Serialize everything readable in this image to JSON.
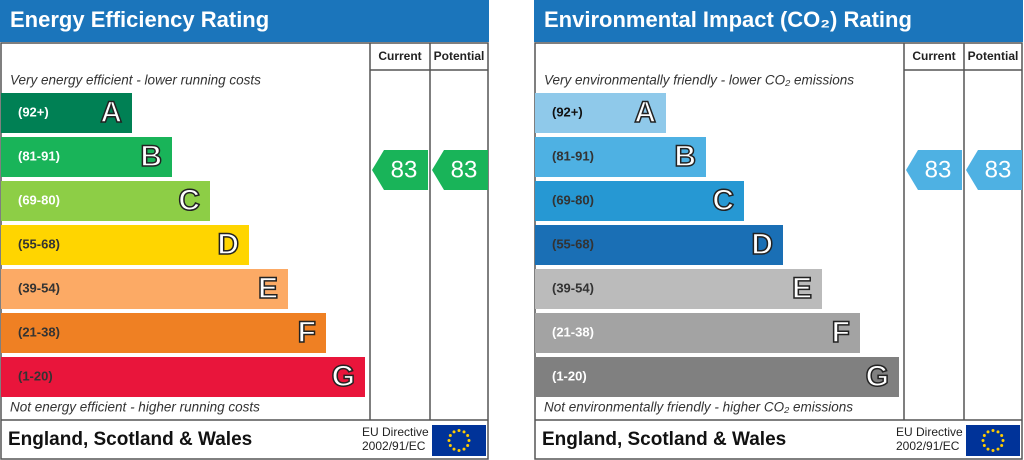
{
  "panels": [
    {
      "title": "Energy Efficiency Rating",
      "headers": [
        "Current",
        "Potential"
      ],
      "top_note": "Very energy efficient - lower running costs",
      "bands": [
        {
          "range": "(92+)",
          "letter": "A",
          "color": "#008054",
          "text_color": "#ffffff"
        },
        {
          "range": "(81-91)",
          "letter": "B",
          "color": "#19b459",
          "text_color": "#ffffff"
        },
        {
          "range": "(69-80)",
          "letter": "C",
          "color": "#8dce46",
          "text_color": "#ffffff"
        },
        {
          "range": "(55-68)",
          "letter": "D",
          "color": "#ffd500",
          "text_color": "#333333"
        },
        {
          "range": "(39-54)",
          "letter": "E",
          "color": "#fcaa65",
          "text_color": "#333333"
        },
        {
          "range": "(21-38)",
          "letter": "F",
          "color": "#ef8023",
          "text_color": "#333333"
        },
        {
          "range": "(1-20)",
          "letter": "G",
          "color": "#e9153b",
          "text_color": "#333333"
        }
      ],
      "current": 83,
      "potential": 83,
      "rating_color": "#19b459",
      "bottom_note": "Not energy efficient - higher running costs",
      "region": "England, Scotland & Wales",
      "directive": [
        "EU Directive",
        "2002/91/EC"
      ]
    },
    {
      "title": "Environmental Impact (CO₂) Rating",
      "headers": [
        "Current",
        "Potential"
      ],
      "top_note": "Very environmentally friendly - lower CO₂ emissions",
      "bands": [
        {
          "range": "(92+)",
          "letter": "A",
          "color": "#8fc9ea",
          "text_color": "#111111"
        },
        {
          "range": "(81-91)",
          "letter": "B",
          "color": "#4eb1e3",
          "text_color": "#333333"
        },
        {
          "range": "(69-80)",
          "letter": "C",
          "color": "#2698d3",
          "text_color": "#333333"
        },
        {
          "range": "(55-68)",
          "letter": "D",
          "color": "#1a6fb5",
          "text_color": "#333333"
        },
        {
          "range": "(39-54)",
          "letter": "E",
          "color": "#bbbbbb",
          "text_color": "#333333"
        },
        {
          "range": "(21-38)",
          "letter": "F",
          "color": "#a3a3a3",
          "text_color": "#ffffff"
        },
        {
          "range": "(1-20)",
          "letter": "G",
          "color": "#808080",
          "text_color": "#ffffff"
        }
      ],
      "current": 83,
      "potential": 83,
      "rating_color": "#4eb1e3",
      "bottom_note": "Not environmentally friendly - higher CO₂ emissions",
      "region": "England, Scotland & Wales",
      "directive": [
        "EU Directive",
        "2002/91/EC"
      ]
    }
  ]
}
